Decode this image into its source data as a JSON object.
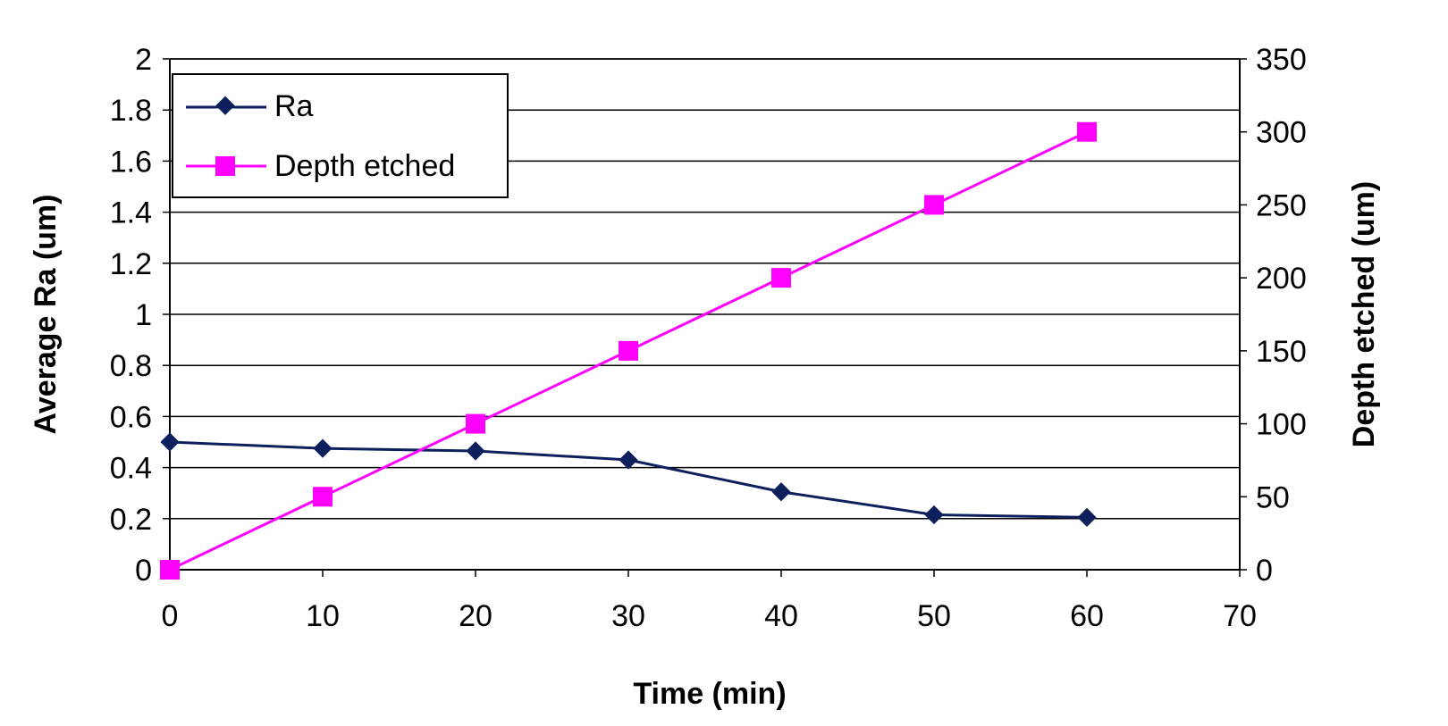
{
  "chart_data": {
    "type": "line",
    "title": "",
    "xlabel": "Time (min)",
    "ylabel": "Average Ra (um)",
    "y2label": "Depth etched (um)",
    "xlim": [
      0,
      70
    ],
    "ylim": [
      0,
      2
    ],
    "y2lim": [
      0,
      350
    ],
    "xticks": [
      "0",
      "10",
      "20",
      "30",
      "40",
      "50",
      "60",
      "70"
    ],
    "yticks": [
      "0",
      "0.2",
      "0.4",
      "0.6",
      "0.8",
      "1",
      "1.2",
      "1.4",
      "1.6",
      "1.8",
      "2"
    ],
    "y2ticks": [
      "0",
      "50",
      "100",
      "150",
      "200",
      "250",
      "300",
      "350"
    ],
    "grid": true,
    "legend_position": "top-left",
    "series": [
      {
        "name": "Ra",
        "axis": "left",
        "marker": "diamond",
        "color": "#0d1f5c",
        "x": [
          0,
          10,
          20,
          30,
          40,
          50,
          60
        ],
        "values": [
          0.5,
          0.475,
          0.465,
          0.43,
          0.305,
          0.215,
          0.205
        ]
      },
      {
        "name": "Depth etched",
        "axis": "right",
        "marker": "square",
        "color": "#ff00ff",
        "x": [
          0,
          10,
          20,
          30,
          40,
          50,
          60
        ],
        "values": [
          0,
          50,
          100,
          150,
          200,
          250,
          300
        ]
      }
    ]
  }
}
